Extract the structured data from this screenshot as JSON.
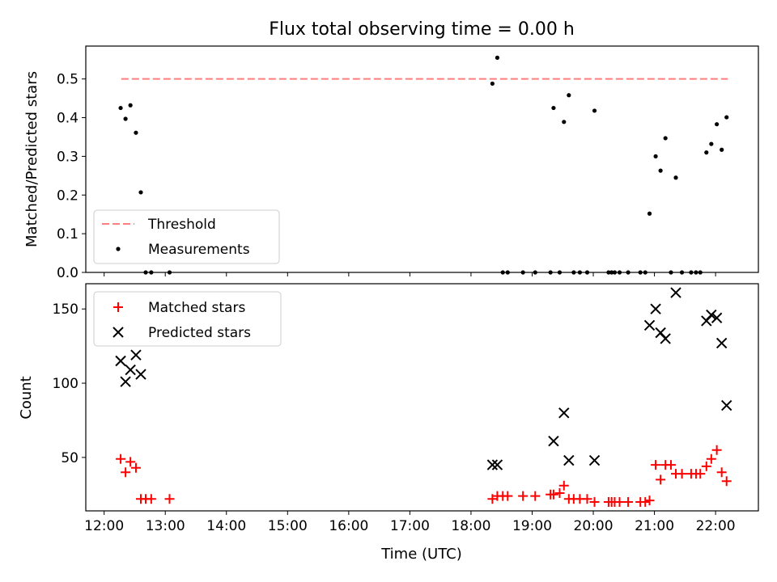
{
  "chart_data": [
    {
      "type": "scatter",
      "title": "Flux total observing time = 0.00 h",
      "ylabel": "Matched/Predicted stars",
      "xlabel": "",
      "x_unit": "time of day (h)",
      "xlim": [
        11.7,
        22.7
      ],
      "ylim": [
        0.0,
        0.585
      ],
      "yticks": [
        0.0,
        0.1,
        0.2,
        0.3,
        0.4,
        0.5
      ],
      "ytick_labels": [
        "0.0",
        "0.1",
        "0.2",
        "0.3",
        "0.4",
        "0.5"
      ],
      "legend_position": "lower-left",
      "threshold": {
        "name": "Threshold",
        "y": 0.5,
        "x": [
          12.28,
          22.2
        ],
        "color": "#ff7f7f"
      },
      "series": [
        {
          "name": "Measurements",
          "color": "#000000",
          "points": [
            [
              12.27,
              0.425
            ],
            [
              12.35,
              0.397
            ],
            [
              12.43,
              0.432
            ],
            [
              12.52,
              0.361
            ],
            [
              12.6,
              0.207
            ],
            [
              12.68,
              0.0
            ],
            [
              12.77,
              0.0
            ],
            [
              13.07,
              0.0
            ],
            [
              18.35,
              0.488
            ],
            [
              18.43,
              0.555
            ],
            [
              18.52,
              0.0
            ],
            [
              18.6,
              0.0
            ],
            [
              18.85,
              0.0
            ],
            [
              19.05,
              0.0
            ],
            [
              19.3,
              0.0
            ],
            [
              19.35,
              0.425
            ],
            [
              19.45,
              0.0
            ],
            [
              19.52,
              0.389
            ],
            [
              19.6,
              0.458
            ],
            [
              19.68,
              0.0
            ],
            [
              19.78,
              0.0
            ],
            [
              19.9,
              0.0
            ],
            [
              20.02,
              0.418
            ],
            [
              20.25,
              0.0
            ],
            [
              20.3,
              0.0
            ],
            [
              20.35,
              0.0
            ],
            [
              20.43,
              0.0
            ],
            [
              20.57,
              0.0
            ],
            [
              20.77,
              0.0
            ],
            [
              20.85,
              0.0
            ],
            [
              20.92,
              0.152
            ],
            [
              21.02,
              0.3
            ],
            [
              21.1,
              0.263
            ],
            [
              21.18,
              0.347
            ],
            [
              21.27,
              0.0
            ],
            [
              21.35,
              0.245
            ],
            [
              21.45,
              0.0
            ],
            [
              21.6,
              0.0
            ],
            [
              21.68,
              0.0
            ],
            [
              21.75,
              0.0
            ],
            [
              21.85,
              0.31
            ],
            [
              21.93,
              0.332
            ],
            [
              22.02,
              0.383
            ],
            [
              22.1,
              0.317
            ],
            [
              22.18,
              0.401
            ]
          ]
        }
      ]
    },
    {
      "type": "scatter",
      "title": "",
      "ylabel": "Count",
      "xlabel": "Time (UTC)",
      "x_unit": "time of day (h)",
      "xlim": [
        11.7,
        22.7
      ],
      "ylim": [
        14,
        167
      ],
      "yticks": [
        50,
        100,
        150
      ],
      "ytick_labels": [
        "50",
        "100",
        "150"
      ],
      "xticks": [
        12,
        13,
        14,
        15,
        16,
        17,
        18,
        19,
        20,
        21,
        22
      ],
      "xtick_labels": [
        "12:00",
        "13:00",
        "14:00",
        "15:00",
        "16:00",
        "17:00",
        "18:00",
        "19:00",
        "20:00",
        "21:00",
        "22:00"
      ],
      "legend_position": "upper-left",
      "series": [
        {
          "name": "Matched stars",
          "marker": "plus",
          "color": "#ff0000",
          "points": [
            [
              12.27,
              49
            ],
            [
              12.35,
              40
            ],
            [
              12.43,
              47
            ],
            [
              12.52,
              43
            ],
            [
              12.6,
              22
            ],
            [
              12.68,
              22
            ],
            [
              12.77,
              22
            ],
            [
              13.07,
              22
            ],
            [
              18.35,
              22
            ],
            [
              18.43,
              24
            ],
            [
              18.52,
              24
            ],
            [
              18.6,
              24
            ],
            [
              18.85,
              24
            ],
            [
              19.05,
              24
            ],
            [
              19.3,
              25
            ],
            [
              19.35,
              25
            ],
            [
              19.45,
              26
            ],
            [
              19.52,
              31
            ],
            [
              19.6,
              22
            ],
            [
              19.68,
              22
            ],
            [
              19.78,
              22
            ],
            [
              19.9,
              22
            ],
            [
              20.02,
              20
            ],
            [
              20.25,
              20
            ],
            [
              20.3,
              20
            ],
            [
              20.35,
              20
            ],
            [
              20.43,
              20
            ],
            [
              20.57,
              20
            ],
            [
              20.77,
              20
            ],
            [
              20.85,
              20
            ],
            [
              20.92,
              21
            ],
            [
              21.02,
              45
            ],
            [
              21.1,
              35
            ],
            [
              21.18,
              45
            ],
            [
              21.27,
              45
            ],
            [
              21.35,
              39
            ],
            [
              21.45,
              39
            ],
            [
              21.6,
              39
            ],
            [
              21.68,
              39
            ],
            [
              21.75,
              39
            ],
            [
              21.85,
              44
            ],
            [
              21.93,
              49
            ],
            [
              22.02,
              55
            ],
            [
              22.1,
              40
            ],
            [
              22.18,
              34
            ]
          ]
        },
        {
          "name": "Predicted stars",
          "marker": "x",
          "color": "#000000",
          "points": [
            [
              12.27,
              115
            ],
            [
              12.35,
              101
            ],
            [
              12.43,
              109
            ],
            [
              12.52,
              119
            ],
            [
              12.6,
              106
            ],
            [
              18.35,
              45
            ],
            [
              18.43,
              45
            ],
            [
              19.35,
              61
            ],
            [
              19.52,
              80
            ],
            [
              19.6,
              48
            ],
            [
              20.02,
              48
            ],
            [
              20.92,
              139
            ],
            [
              21.02,
              150
            ],
            [
              21.1,
              134
            ],
            [
              21.18,
              130
            ],
            [
              21.35,
              161
            ],
            [
              21.85,
              142
            ],
            [
              21.93,
              146
            ],
            [
              22.02,
              144
            ],
            [
              22.1,
              127
            ],
            [
              22.18,
              85
            ]
          ]
        }
      ]
    }
  ]
}
